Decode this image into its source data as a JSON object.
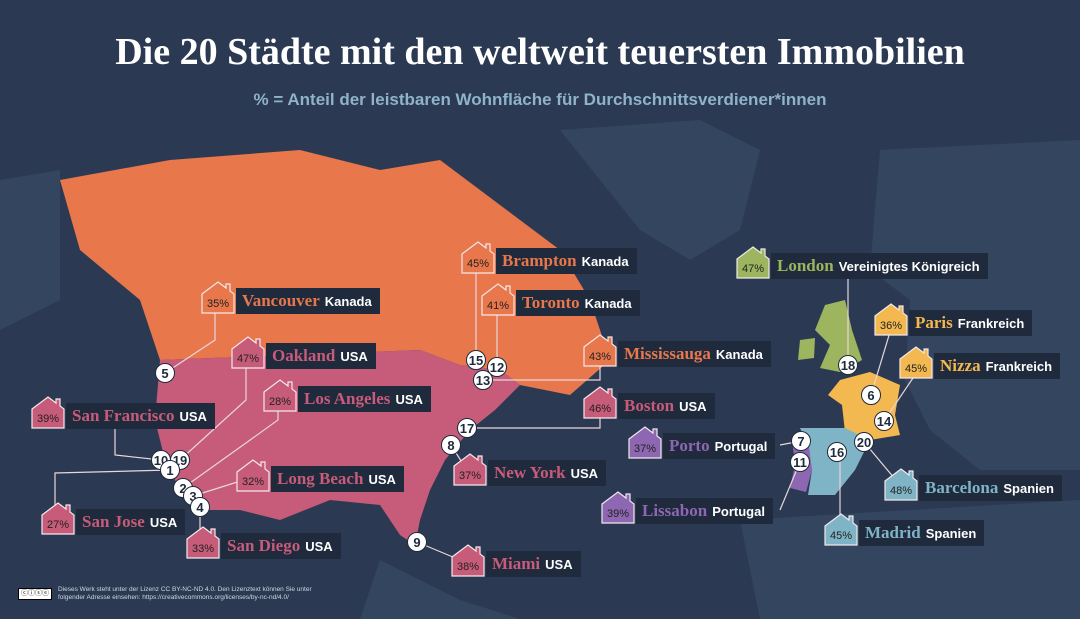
{
  "title": "Die 20 Städte mit den weltweit teuersten Immobilien",
  "subtitle": "% = Anteil der leistbaren Wohnfläche für Durchschnittsverdiener*innen",
  "colors": {
    "background": "#2b3a52",
    "canada": "#e8774c",
    "usa": "#c75b7a",
    "uk": "#9cb55e",
    "france": "#f3b84f",
    "portugal": "#8d67b2",
    "spain": "#7fb4c6",
    "label_bg": "#1f2a3c"
  },
  "cities": [
    {
      "rank": 5,
      "name": "Vancouver",
      "country": "Kanada",
      "pct": "35%",
      "color": "#e8774c"
    },
    {
      "rank": 19,
      "name": "Oakland",
      "country": "USA",
      "pct": "47%",
      "color": "#c75b7a"
    },
    {
      "rank": 2,
      "name": "Los Angeles",
      "country": "USA",
      "pct": "28%",
      "color": "#c75b7a"
    },
    {
      "rank": 10,
      "name": "San Francisco",
      "country": "USA",
      "pct": "39%",
      "color": "#c75b7a"
    },
    {
      "rank": 3,
      "name": "Long Beach",
      "country": "USA",
      "pct": "32%",
      "color": "#c75b7a"
    },
    {
      "rank": 1,
      "name": "San Jose",
      "country": "USA",
      "pct": "27%",
      "color": "#c75b7a"
    },
    {
      "rank": 4,
      "name": "San Diego",
      "country": "USA",
      "pct": "33%",
      "color": "#c75b7a"
    },
    {
      "rank": 15,
      "name": "Brampton",
      "country": "Kanada",
      "pct": "45%",
      "color": "#e8774c"
    },
    {
      "rank": 12,
      "name": "Toronto",
      "country": "Kanada",
      "pct": "41%",
      "color": "#e8774c"
    },
    {
      "rank": 13,
      "name": "Mississauga",
      "country": "Kanada",
      "pct": "43%",
      "color": "#e8774c"
    },
    {
      "rank": 17,
      "name": "Boston",
      "country": "USA",
      "pct": "46%",
      "color": "#c75b7a"
    },
    {
      "rank": 8,
      "name": "New York",
      "country": "USA",
      "pct": "37%",
      "color": "#c75b7a"
    },
    {
      "rank": 9,
      "name": "Miami",
      "country": "USA",
      "pct": "38%",
      "color": "#c75b7a"
    },
    {
      "rank": 18,
      "name": "London",
      "country": "Vereinigtes Königreich",
      "pct": "47%",
      "color": "#9cb55e"
    },
    {
      "rank": 6,
      "name": "Paris",
      "country": "Frankreich",
      "pct": "36%",
      "color": "#f3b84f"
    },
    {
      "rank": 14,
      "name": "Nizza",
      "country": "Frankreich",
      "pct": "45%",
      "color": "#f3b84f"
    },
    {
      "rank": 7,
      "name": "Porto",
      "country": "Portugal",
      "pct": "37%",
      "color": "#8d67b2"
    },
    {
      "rank": 11,
      "name": "Lissabon",
      "country": "Portugal",
      "pct": "39%",
      "color": "#8d67b2"
    },
    {
      "rank": 20,
      "name": "Barcelona",
      "country": "Spanien",
      "pct": "48%",
      "color": "#7fb4c6"
    },
    {
      "rank": 16,
      "name": "Madrid",
      "country": "Spanien",
      "pct": "45%",
      "color": "#7fb4c6"
    }
  ],
  "footer": {
    "license_badge": "cc by nc nd",
    "text": "Dieses Werk steht unter der Lizenz CC BY-NC-ND 4.0. Den Lizenztext können Sie unter folgender Adresse einsehen: https://creativecommons.org/licenses/by-nc-nd/4.0/"
  }
}
